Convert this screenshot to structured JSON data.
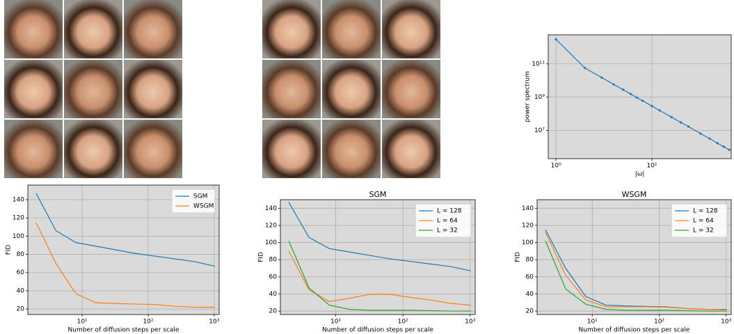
{
  "chart_data": [
    {
      "type": "line",
      "xscale": "log",
      "yscale": "log",
      "markers": true,
      "grid": true,
      "xlabel": "|ω|",
      "ylabel": "power spectrum",
      "x": [
        1,
        2,
        3,
        4,
        5,
        6,
        7,
        8,
        10,
        12,
        16,
        20,
        24,
        32,
        40,
        48,
        56,
        64
      ],
      "series": [
        {
          "color": "#1f77b4",
          "values": [
            3000000000000.0,
            56000000000.0,
            15000000000.0,
            5800000000.0,
            2800000000.0,
            1550000000.0,
            930000000.0,
            600000000.0,
            290000000.0,
            160000000.0,
            63000000.0,
            30000000.0,
            17000000.0,
            6500000.0,
            3200000.0,
            1700000.0,
            1050000.0,
            680000.0
          ]
        }
      ],
      "xlim": [
        0.83,
        67
      ],
      "ylim": [
        200000.0,
        5600000000000.0
      ],
      "xticks": [
        {
          "value": 1,
          "label": "10⁰"
        },
        {
          "value": 10,
          "label": "10¹"
        }
      ],
      "yticks": [
        {
          "value": 10000000.0,
          "label": "10⁷"
        },
        {
          "value": 1000000000.0,
          "label": "10⁹"
        },
        {
          "value": 100000000000.0,
          "label": "10¹¹"
        }
      ]
    },
    {
      "type": "line",
      "xscale": "log",
      "grid": true,
      "legend": "upper right",
      "xlabel": "Number of diffusion steps per scale",
      "ylabel": "FID",
      "x": [
        2,
        4,
        8,
        16,
        32,
        64,
        128,
        256,
        512,
        1024
      ],
      "series": [
        {
          "name": "SGM",
          "color": "#1f77b4",
          "values": [
            147,
            106,
            93,
            89,
            85,
            81,
            78,
            75,
            72,
            67
          ]
        },
        {
          "name": "WSGM",
          "color": "#ff7f0e",
          "values": [
            115,
            70,
            37,
            27,
            26,
            25.5,
            25,
            23,
            22,
            22
          ]
        }
      ],
      "xlim": [
        1.5,
        1190
      ],
      "ylim": [
        14,
        156
      ],
      "xticks": [
        {
          "value": 10,
          "label": "10¹"
        },
        {
          "value": 100,
          "label": "10²"
        },
        {
          "value": 1000,
          "label": "10³"
        }
      ],
      "yticks": [
        20,
        40,
        60,
        80,
        100,
        120,
        140
      ]
    },
    {
      "type": "line",
      "xscale": "log",
      "grid": true,
      "legend": "upper right",
      "title": "SGM",
      "xlabel": "Number of diffusion steps per scale",
      "ylabel": "FID",
      "x": [
        2,
        4,
        8,
        16,
        32,
        64,
        128,
        256,
        512,
        1024
      ],
      "series": [
        {
          "name": "L = 128",
          "color": "#1f77b4",
          "values": [
            147,
            106,
            93,
            89,
            85,
            81,
            78,
            75,
            72,
            67
          ]
        },
        {
          "name": "L = 64",
          "color": "#ff7f0e",
          "values": [
            90,
            45,
            31,
            35,
            39.5,
            39.5,
            36,
            33,
            29,
            27
          ]
        },
        {
          "name": "L = 32",
          "color": "#2ca02c",
          "values": [
            102,
            47,
            27,
            22,
            21,
            21,
            21,
            20.5,
            20,
            20
          ]
        }
      ],
      "xlim": [
        1.5,
        1190
      ],
      "ylim": [
        16,
        150
      ],
      "xticks": [
        {
          "value": 10,
          "label": "10¹"
        },
        {
          "value": 100,
          "label": "10²"
        },
        {
          "value": 1000,
          "label": "10³"
        }
      ],
      "yticks": [
        20,
        40,
        60,
        80,
        100,
        120,
        140
      ]
    },
    {
      "type": "line",
      "xscale": "log",
      "grid": true,
      "legend": "upper right",
      "title": "WSGM",
      "xlabel": "Number of diffusion steps per scale",
      "ylabel": "FID",
      "x": [
        2,
        4,
        8,
        16,
        32,
        64,
        128,
        256,
        512,
        1024
      ],
      "series": [
        {
          "name": "L = 128",
          "color": "#1f77b4",
          "values": [
            115,
            70,
            37,
            27,
            26,
            25.5,
            25,
            23,
            22,
            22
          ]
        },
        {
          "name": "L = 64",
          "color": "#ff7f0e",
          "values": [
            112,
            62,
            33,
            25,
            25,
            25,
            24.5,
            23,
            22,
            21.5
          ]
        },
        {
          "name": "L = 32",
          "color": "#2ca02c",
          "values": [
            102,
            46,
            28,
            22,
            21,
            21,
            21,
            20.5,
            20,
            20
          ]
        }
      ],
      "xlim": [
        1.5,
        1190
      ],
      "ylim": [
        16,
        150
      ],
      "xticks": [
        {
          "value": 10,
          "label": "10¹"
        },
        {
          "value": 100,
          "label": "10²"
        },
        {
          "value": 1000,
          "label": "10³"
        }
      ],
      "yticks": [
        20,
        40,
        60,
        80,
        100,
        120,
        140
      ]
    }
  ]
}
